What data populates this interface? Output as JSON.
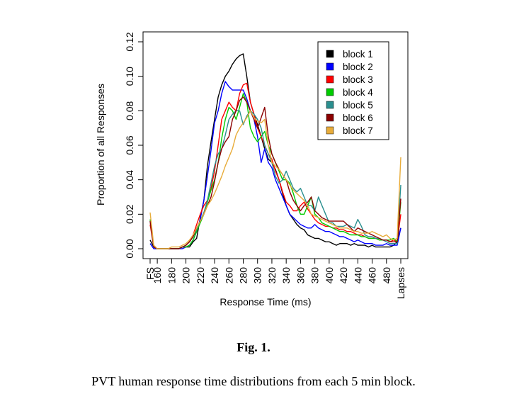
{
  "figure": {
    "label": "Fig. 1.",
    "caption": "PVT human response time distributions from each 5 min block."
  },
  "chart_data": {
    "type": "line",
    "title": "",
    "xlabel": "Response Time (ms)",
    "ylabel": "Proportion of all Responses",
    "ylim": [
      0,
      0.12
    ],
    "y_ticks": [
      "0.00",
      "0.02",
      "0.04",
      "0.06",
      "0.08",
      "0.10",
      "0.12"
    ],
    "x_tick_labels": [
      "FS",
      "160",
      "180",
      "200",
      "220",
      "240",
      "260",
      "280",
      "300",
      "320",
      "340",
      "360",
      "380",
      "400",
      "420",
      "440",
      "460",
      "480",
      "Lapses"
    ],
    "x_tick_positions": [
      150,
      160,
      180,
      200,
      220,
      240,
      260,
      280,
      300,
      320,
      340,
      360,
      380,
      400,
      420,
      440,
      460,
      480,
      500
    ],
    "xlim": [
      150,
      500
    ],
    "legend_position": "top-right",
    "grid": false,
    "x": [
      150,
      155,
      160,
      165,
      170,
      175,
      180,
      185,
      190,
      195,
      200,
      205,
      210,
      215,
      220,
      225,
      230,
      235,
      240,
      245,
      250,
      255,
      260,
      265,
      270,
      275,
      280,
      285,
      290,
      295,
      300,
      305,
      310,
      315,
      320,
      325,
      330,
      335,
      340,
      345,
      350,
      355,
      360,
      365,
      370,
      375,
      380,
      385,
      390,
      395,
      400,
      405,
      410,
      415,
      420,
      425,
      430,
      435,
      440,
      445,
      450,
      455,
      460,
      465,
      470,
      475,
      480,
      485,
      490,
      495,
      500
    ],
    "series": [
      {
        "name": "block 1",
        "color": "#000000",
        "values": [
          0.005,
          0.001,
          0,
          0,
          0,
          0,
          0,
          0,
          0,
          0.001,
          0.001,
          0.001,
          0.004,
          0.006,
          0.018,
          0.028,
          0.048,
          0.062,
          0.075,
          0.088,
          0.095,
          0.1,
          0.103,
          0.107,
          0.11,
          0.112,
          0.113,
          0.1,
          0.085,
          0.078,
          0.072,
          0.065,
          0.058,
          0.052,
          0.05,
          0.046,
          0.04,
          0.032,
          0.025,
          0.02,
          0.017,
          0.014,
          0.012,
          0.011,
          0.008,
          0.007,
          0.006,
          0.006,
          0.005,
          0.004,
          0.004,
          0.003,
          0.002,
          0.003,
          0.003,
          0.003,
          0.002,
          0.003,
          0.002,
          0.002,
          0.002,
          0.001,
          0.002,
          0.001,
          0.001,
          0.001,
          0.001,
          0.001,
          0.002,
          0.004,
          0.012
        ]
      },
      {
        "name": "block 2",
        "color": "#0000ff",
        "values": [
          0.003,
          0,
          0,
          0,
          0,
          0,
          0,
          0,
          0,
          0,
          0.001,
          0.002,
          0.005,
          0.01,
          0.017,
          0.028,
          0.042,
          0.057,
          0.073,
          0.08,
          0.09,
          0.097,
          0.094,
          0.092,
          0.092,
          0.092,
          0.092,
          0.087,
          0.08,
          0.075,
          0.065,
          0.05,
          0.058,
          0.05,
          0.047,
          0.04,
          0.035,
          0.03,
          0.025,
          0.02,
          0.018,
          0.016,
          0.014,
          0.013,
          0.012,
          0.012,
          0.014,
          0.012,
          0.011,
          0.01,
          0.01,
          0.009,
          0.008,
          0.007,
          0.007,
          0.006,
          0.005,
          0.004,
          0.005,
          0.004,
          0.003,
          0.003,
          0.003,
          0.002,
          0.002,
          0.002,
          0.003,
          0.002,
          0.002,
          0.002,
          0.012
        ]
      },
      {
        "name": "block 3",
        "color": "#ff0000",
        "values": [
          0.014,
          0.001,
          0,
          0,
          0,
          0,
          0,
          0,
          0,
          0.001,
          0.002,
          0.004,
          0.008,
          0.014,
          0.02,
          0.025,
          0.028,
          0.035,
          0.045,
          0.06,
          0.075,
          0.08,
          0.085,
          0.082,
          0.08,
          0.09,
          0.095,
          0.096,
          0.085,
          0.078,
          0.07,
          0.065,
          0.06,
          0.055,
          0.052,
          0.045,
          0.04,
          0.033,
          0.027,
          0.025,
          0.022,
          0.022,
          0.025,
          0.027,
          0.023,
          0.02,
          0.017,
          0.015,
          0.014,
          0.013,
          0.013,
          0.012,
          0.012,
          0.011,
          0.011,
          0.01,
          0.01,
          0.009,
          0.008,
          0.008,
          0.007,
          0.006,
          0.006,
          0.006,
          0.005,
          0.005,
          0.005,
          0.004,
          0.005,
          0.004,
          0.02
        ]
      },
      {
        "name": "block 4",
        "color": "#00cc00",
        "values": [
          0.017,
          0.001,
          0,
          0,
          0,
          0,
          0,
          0,
          0,
          0.001,
          0.001,
          0.002,
          0.005,
          0.01,
          0.015,
          0.02,
          0.027,
          0.034,
          0.04,
          0.05,
          0.064,
          0.075,
          0.082,
          0.08,
          0.075,
          0.082,
          0.09,
          0.085,
          0.07,
          0.065,
          0.062,
          0.065,
          0.068,
          0.06,
          0.055,
          0.05,
          0.045,
          0.04,
          0.04,
          0.038,
          0.032,
          0.025,
          0.02,
          0.02,
          0.025,
          0.03,
          0.02,
          0.018,
          0.015,
          0.014,
          0.013,
          0.012,
          0.011,
          0.01,
          0.01,
          0.009,
          0.008,
          0.008,
          0.008,
          0.007,
          0.007,
          0.006,
          0.006,
          0.006,
          0.005,
          0.005,
          0.005,
          0.005,
          0.006,
          0.004,
          0.027
        ]
      },
      {
        "name": "block 5",
        "color": "#2a8f8f",
        "values": [
          0.016,
          0.001,
          0,
          0,
          0,
          0,
          0,
          0,
          0,
          0.001,
          0.002,
          0.004,
          0.007,
          0.011,
          0.016,
          0.021,
          0.028,
          0.038,
          0.048,
          0.055,
          0.058,
          0.066,
          0.075,
          0.078,
          0.08,
          0.08,
          0.072,
          0.077,
          0.08,
          0.078,
          0.075,
          0.07,
          0.06,
          0.055,
          0.05,
          0.042,
          0.038,
          0.04,
          0.045,
          0.04,
          0.035,
          0.033,
          0.035,
          0.03,
          0.025,
          0.025,
          0.022,
          0.03,
          0.025,
          0.02,
          0.015,
          0.015,
          0.013,
          0.013,
          0.013,
          0.014,
          0.013,
          0.012,
          0.017,
          0.013,
          0.008,
          0.007,
          0.007,
          0.006,
          0.006,
          0.005,
          0.004,
          0.003,
          0.003,
          0.003,
          0.037
        ]
      },
      {
        "name": "block 6",
        "color": "#8b0000",
        "values": [
          0.016,
          0.001,
          0,
          0,
          0,
          0,
          0,
          0,
          0,
          0.001,
          0.002,
          0.004,
          0.007,
          0.012,
          0.016,
          0.02,
          0.025,
          0.03,
          0.039,
          0.05,
          0.058,
          0.062,
          0.065,
          0.075,
          0.08,
          0.086,
          0.088,
          0.085,
          0.08,
          0.075,
          0.07,
          0.076,
          0.082,
          0.065,
          0.055,
          0.05,
          0.046,
          0.043,
          0.04,
          0.033,
          0.028,
          0.025,
          0.022,
          0.025,
          0.027,
          0.03,
          0.022,
          0.02,
          0.018,
          0.017,
          0.016,
          0.016,
          0.016,
          0.016,
          0.016,
          0.014,
          0.012,
          0.01,
          0.012,
          0.011,
          0.01,
          0.009,
          0.008,
          0.007,
          0.006,
          0.005,
          0.005,
          0.004,
          0.004,
          0.004,
          0.029
        ]
      },
      {
        "name": "block 7",
        "color": "#e8ac3a",
        "values": [
          0.021,
          0.002,
          0,
          0,
          0,
          0,
          0.001,
          0.001,
          0.001,
          0.002,
          0.003,
          0.005,
          0.008,
          0.012,
          0.016,
          0.02,
          0.025,
          0.028,
          0.032,
          0.037,
          0.042,
          0.048,
          0.053,
          0.058,
          0.066,
          0.07,
          0.073,
          0.076,
          0.08,
          0.076,
          0.074,
          0.073,
          0.075,
          0.06,
          0.05,
          0.048,
          0.046,
          0.043,
          0.04,
          0.037,
          0.034,
          0.032,
          0.03,
          0.028,
          0.025,
          0.02,
          0.019,
          0.018,
          0.017,
          0.016,
          0.015,
          0.014,
          0.013,
          0.012,
          0.012,
          0.012,
          0.011,
          0.01,
          0.01,
          0.009,
          0.009,
          0.009,
          0.01,
          0.009,
          0.008,
          0.007,
          0.008,
          0.006,
          0.005,
          0.006,
          0.053
        ]
      }
    ]
  }
}
